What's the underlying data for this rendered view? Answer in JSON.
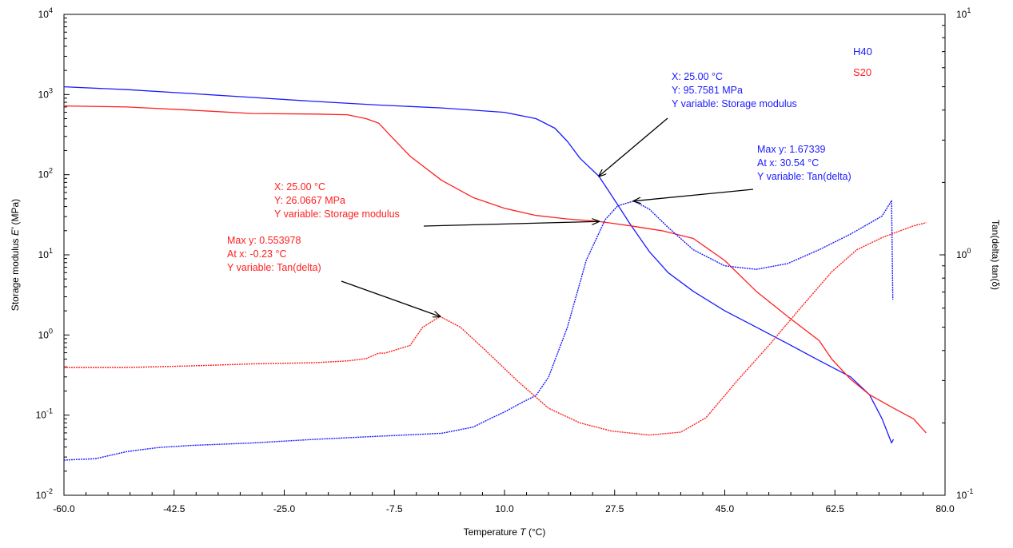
{
  "chart_data": {
    "type": "line",
    "xlabel": "Temperature",
    "xlabel_symbol": "T",
    "xlabel_unit": "(°C)",
    "ylabel_left": "Storage modulus",
    "ylabel_left_symbol": "E'",
    "ylabel_left_unit": "(MPa)",
    "ylabel_right": "Tan(delta) tan(δ)",
    "xlim": [
      -60,
      80
    ],
    "ylim_left": [
      0.01,
      10000
    ],
    "ylim_right": [
      0.1,
      10
    ],
    "yscale": "log",
    "grid": false,
    "legend_position": "top-right",
    "x_ticks": [
      "-60.0",
      "-42.5",
      "-25.0",
      "-7.5",
      "10.0",
      "27.5",
      "45.0",
      "62.5",
      "80.0"
    ],
    "x_tick_values": [
      -60,
      -42.5,
      -25,
      -7.5,
      10,
      27.5,
      45,
      62.5,
      80
    ],
    "y_left_ticks": [
      {
        "base": "10",
        "exp": "-2",
        "value": 0.01
      },
      {
        "base": "10",
        "exp": "-1",
        "value": 0.1
      },
      {
        "base": "10",
        "exp": "0",
        "value": 1
      },
      {
        "base": "10",
        "exp": "1",
        "value": 10
      },
      {
        "base": "10",
        "exp": "2",
        "value": 100
      },
      {
        "base": "10",
        "exp": "3",
        "value": 1000
      },
      {
        "base": "10",
        "exp": "4",
        "value": 10000
      }
    ],
    "y_right_ticks": [
      {
        "base": "10",
        "exp": "-1",
        "value": 0.1
      },
      {
        "base": "10",
        "exp": "0",
        "value": 1
      },
      {
        "base": "10",
        "exp": "1",
        "value": 10
      }
    ],
    "legend": [
      {
        "label": "H40",
        "color": "#1a1aff"
      },
      {
        "label": "S20",
        "color": "#ff2020"
      }
    ],
    "series": [
      {
        "name": "H40",
        "variable": "Storage modulus",
        "axis": "left",
        "color": "#1a1aff",
        "dash": false,
        "points": [
          [
            -60,
            1250
          ],
          [
            -50,
            1150
          ],
          [
            -40,
            1030
          ],
          [
            -30,
            920
          ],
          [
            -20,
            820
          ],
          [
            -10,
            740
          ],
          [
            0,
            680
          ],
          [
            10,
            600
          ],
          [
            15,
            500
          ],
          [
            18,
            380
          ],
          [
            20,
            260
          ],
          [
            22,
            160
          ],
          [
            25,
            95.76
          ],
          [
            28,
            42
          ],
          [
            30,
            24
          ],
          [
            33,
            11
          ],
          [
            36,
            6
          ],
          [
            40,
            3.5
          ],
          [
            45,
            2.0
          ],
          [
            50,
            1.25
          ],
          [
            55,
            0.78
          ],
          [
            60,
            0.48
          ],
          [
            65,
            0.3
          ],
          [
            68,
            0.18
          ],
          [
            70,
            0.09
          ],
          [
            71.5,
            0.045
          ],
          [
            71.8,
            0.05
          ]
        ]
      },
      {
        "name": "S20",
        "variable": "Storage modulus",
        "axis": "left",
        "color": "#ff2020",
        "dash": false,
        "points": [
          [
            -60,
            720
          ],
          [
            -50,
            700
          ],
          [
            -40,
            640
          ],
          [
            -30,
            580
          ],
          [
            -20,
            570
          ],
          [
            -15,
            560
          ],
          [
            -12,
            500
          ],
          [
            -10,
            440
          ],
          [
            -8,
            300
          ],
          [
            -5,
            170
          ],
          [
            0,
            85
          ],
          [
            5,
            52
          ],
          [
            10,
            38
          ],
          [
            15,
            31
          ],
          [
            20,
            28
          ],
          [
            25,
            26.07
          ],
          [
            30,
            23
          ],
          [
            35,
            20
          ],
          [
            40,
            16
          ],
          [
            45,
            8.5
          ],
          [
            50,
            3.5
          ],
          [
            55,
            1.7
          ],
          [
            60,
            0.85
          ],
          [
            62,
            0.5
          ],
          [
            65,
            0.28
          ],
          [
            68,
            0.18
          ],
          [
            72,
            0.12
          ],
          [
            75,
            0.09
          ],
          [
            77,
            0.06
          ]
        ]
      },
      {
        "name": "H40",
        "variable": "Tan(delta)",
        "axis": "right",
        "color": "#1a1aff",
        "dash": true,
        "points": [
          [
            -60,
            0.14
          ],
          [
            -55,
            0.142
          ],
          [
            -50,
            0.152
          ],
          [
            -45,
            0.158
          ],
          [
            -40,
            0.161
          ],
          [
            -30,
            0.165
          ],
          [
            -20,
            0.171
          ],
          [
            -10,
            0.176
          ],
          [
            0,
            0.181
          ],
          [
            5,
            0.192
          ],
          [
            8,
            0.21
          ],
          [
            10,
            0.222
          ],
          [
            13,
            0.245
          ],
          [
            15,
            0.26
          ],
          [
            17,
            0.31
          ],
          [
            20,
            0.5
          ],
          [
            23,
            0.95
          ],
          [
            26,
            1.4
          ],
          [
            28,
            1.6
          ],
          [
            30.54,
            1.67339
          ],
          [
            33,
            1.55
          ],
          [
            36,
            1.3
          ],
          [
            40,
            1.05
          ],
          [
            45,
            0.9
          ],
          [
            50,
            0.87
          ],
          [
            55,
            0.92
          ],
          [
            60,
            1.05
          ],
          [
            65,
            1.22
          ],
          [
            70,
            1.45
          ],
          [
            71.5,
            1.68
          ],
          [
            71.7,
            0.65
          ]
        ]
      },
      {
        "name": "S20",
        "variable": "Tan(delta)",
        "axis": "right",
        "color": "#ff2020",
        "dash": true,
        "points": [
          [
            -60,
            0.34
          ],
          [
            -50,
            0.34
          ],
          [
            -40,
            0.345
          ],
          [
            -30,
            0.352
          ],
          [
            -20,
            0.356
          ],
          [
            -15,
            0.362
          ],
          [
            -12,
            0.37
          ],
          [
            -10,
            0.39
          ],
          [
            -9,
            0.39
          ],
          [
            -5,
            0.42
          ],
          [
            -3,
            0.5
          ],
          [
            -0.23,
            0.553978
          ],
          [
            3,
            0.5
          ],
          [
            7,
            0.4
          ],
          [
            12,
            0.3
          ],
          [
            17,
            0.23
          ],
          [
            22,
            0.2
          ],
          [
            27,
            0.185
          ],
          [
            33,
            0.178
          ],
          [
            38,
            0.183
          ],
          [
            42,
            0.21
          ],
          [
            47,
            0.3
          ],
          [
            52,
            0.42
          ],
          [
            57,
            0.6
          ],
          [
            62,
            0.85
          ],
          [
            66,
            1.05
          ],
          [
            70,
            1.18
          ],
          [
            75,
            1.32
          ],
          [
            77,
            1.36
          ]
        ]
      }
    ],
    "annotations": [
      {
        "lines": [
          "X: 25.00 °C",
          "Y: 95.7581 MPa",
          "Y variable: Storage modulus"
        ],
        "color": "#1a1aff",
        "target_x": 25.0,
        "target_y": 95.7581,
        "axis": "left"
      },
      {
        "lines": [
          "Max y: 1.67339",
          "At x: 30.54 °C",
          "Y variable: Tan(delta)"
        ],
        "color": "#1a1aff",
        "target_x": 30.54,
        "target_y": 1.67339,
        "axis": "right"
      },
      {
        "lines": [
          "X: 25.00 °C",
          "Y: 26.0667 MPa",
          "Y variable: Storage modulus"
        ],
        "color": "#ff2020",
        "target_x": 25.0,
        "target_y": 26.0667,
        "axis": "left"
      },
      {
        "lines": [
          "Max y: 0.553978",
          "At x: -0.23 °C",
          "Y variable: Tan(delta)"
        ],
        "color": "#ff2020",
        "target_x": -0.23,
        "target_y": 0.553978,
        "axis": "right"
      }
    ]
  }
}
